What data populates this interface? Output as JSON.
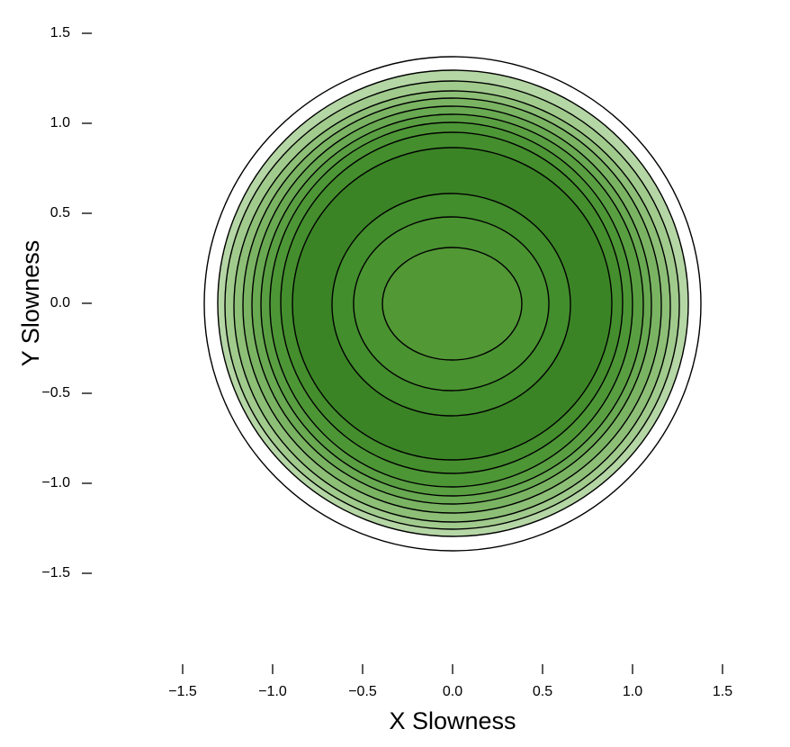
{
  "chart_data": {
    "type": "contour",
    "xlabel": "X Slowness",
    "ylabel": "Y Slowness",
    "xlim": [
      -1.5,
      1.5
    ],
    "ylim": [
      -1.5,
      1.5
    ],
    "xticks": [
      {
        "value": -1.5,
        "label": "−1.5"
      },
      {
        "value": -1.0,
        "label": "−1.0"
      },
      {
        "value": -0.5,
        "label": "−0.5"
      },
      {
        "value": 0,
        "label": "0.0"
      },
      0.5,
      {
        "value": 1.0,
        "label": "1.0"
      },
      1.5
    ],
    "yticks": [
      {
        "value": -1.5,
        "label": "−1.5"
      },
      {
        "value": -1.0,
        "label": "−1.0"
      },
      {
        "value": -0.5,
        "label": "−0.5"
      },
      {
        "value": 0,
        "label": "0.0"
      },
      0.5,
      {
        "value": 1.0,
        "label": "1.0"
      },
      1.5
    ],
    "contours": [
      {
        "color": "#ffffff",
        "xmin": -1.38,
        "xmax": 1.38,
        "ymin": -1.375,
        "ymax": 1.37
      },
      {
        "color": "#b5d6a5",
        "xmin": -1.305,
        "xmax": 1.31,
        "ymin": -1.295,
        "ymax": 1.295
      },
      {
        "color": "#a1cb8d",
        "xmin": -1.265,
        "xmax": 1.26,
        "ymin": -1.255,
        "ymax": 1.235
      },
      {
        "color": "#8dbf77",
        "xmin": -1.215,
        "xmax": 1.21,
        "ymin": -1.215,
        "ymax": 1.18
      },
      {
        "color": "#7ab463",
        "xmin": -1.165,
        "xmax": 1.16,
        "ymin": -1.165,
        "ymax": 1.14
      },
      {
        "color": "#68a951",
        "xmin": -1.115,
        "xmax": 1.105,
        "ymin": -1.115,
        "ymax": 1.095
      },
      {
        "color": "#599f42",
        "xmin": -1.065,
        "xmax": 1.06,
        "ymin": -1.07,
        "ymax": 1.05
      },
      {
        "color": "#4d9636",
        "xmin": -1.015,
        "xmax": 1.0,
        "ymin": -1.02,
        "ymax": 1.005
      },
      {
        "color": "#448e2d",
        "xmin": -0.955,
        "xmax": 0.945,
        "ymin": -0.945,
        "ymax": 0.95
      },
      {
        "color": "#3b8426",
        "xmin": -0.89,
        "xmax": 0.885,
        "ymin": -0.87,
        "ymax": 0.865
      },
      {
        "color": "#428d2c",
        "xmin": -0.67,
        "xmax": 0.655,
        "ymin": -0.625,
        "ymax": 0.61
      },
      {
        "color": "#4a9331",
        "xmin": -0.55,
        "xmax": 0.535,
        "ymin": -0.485,
        "ymax": 0.48
      },
      {
        "color": "#529835",
        "xmin": -0.39,
        "xmax": 0.385,
        "ymin": -0.315,
        "ymax": 0.31
      }
    ]
  }
}
